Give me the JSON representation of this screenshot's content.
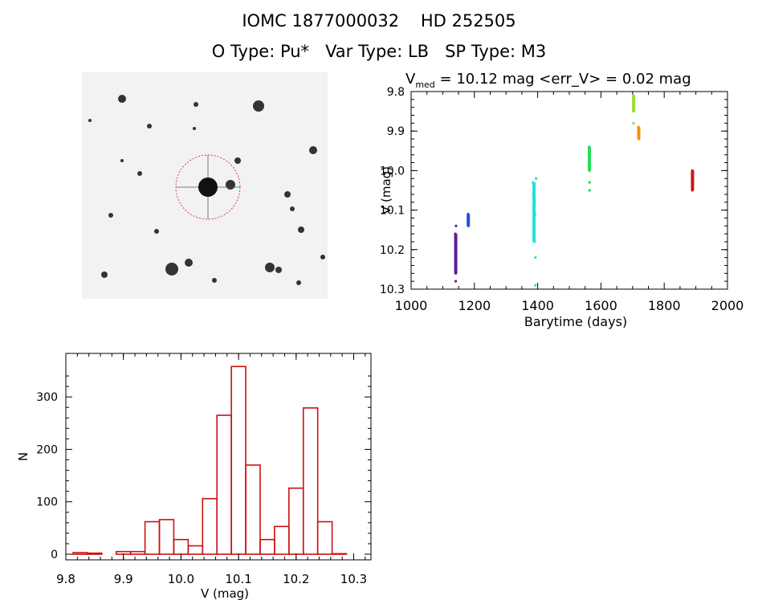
{
  "header": {
    "line1": "IOMC 1877000032    HD 252505",
    "line2": "O Type: Pu*   Var Type: LB   SP Type: M3"
  },
  "colors": {
    "histogram": "#cc1111",
    "aperture": "#dd1111",
    "axes": "#000000"
  },
  "chart_data": [
    {
      "type": "scatter",
      "title": "V_med = 10.12 mag <err_V> = 0.02 mag",
      "title_parts": {
        "main": "V",
        "sub": "med",
        "rest": " = 10.12 mag <err_V> = 0.02 mag"
      },
      "xlabel": "Barytime (days)",
      "ylabel": "V (mag)",
      "xlim": [
        1000,
        2000
      ],
      "ylim": [
        10.3,
        9.8
      ],
      "y_inverted": true,
      "xticks": [
        1000,
        1200,
        1400,
        1600,
        1800,
        2000
      ],
      "xtick_labels": [
        "1000",
        "1200",
        "1400",
        "1600",
        "1800",
        "2000"
      ],
      "yticks": [
        9.8,
        9.9,
        10.0,
        10.1,
        10.2,
        10.3
      ],
      "ytick_labels": [
        "9.8",
        "9.9",
        "10.0",
        "10.1",
        "10.2",
        "10.3"
      ],
      "series": [
        {
          "color": "#5b1c9c",
          "x": [
            1140,
            1141,
            1142,
            1140,
            1142,
            1141
          ],
          "y": [
            10.16,
            10.18,
            10.2,
            10.22,
            10.24,
            10.26
          ],
          "extra": [
            [
              1142,
              10.14
            ],
            [
              1141,
              10.28
            ]
          ]
        },
        {
          "color": "#1f4fd6",
          "x": [
            1180,
            1181,
            1181
          ],
          "y": [
            10.11,
            10.12,
            10.14
          ]
        },
        {
          "color": "#22e0e0",
          "x": [
            1385,
            1386,
            1387,
            1388,
            1389,
            1390,
            1391,
            1392
          ],
          "y": [
            10.03,
            10.06,
            10.09,
            10.12,
            10.15,
            10.18,
            10.08,
            10.11
          ],
          "extra": [
            [
              1395,
              10.02
            ],
            [
              1393,
              10.22
            ],
            [
              1393,
              10.29
            ]
          ]
        },
        {
          "color": "#22dd55",
          "x": [
            1563,
            1564,
            1563,
            1564
          ],
          "y": [
            9.94,
            9.96,
            9.98,
            10.0
          ],
          "extra": [
            [
              1564,
              10.03
            ],
            [
              1564,
              10.05
            ]
          ]
        },
        {
          "color": "#99dd33",
          "x": [
            1703,
            1704,
            1703
          ],
          "y": [
            9.81,
            9.83,
            9.85
          ],
          "extra": [
            [
              1703,
              9.88
            ]
          ]
        },
        {
          "color": "#ff8c00",
          "x": [
            1719,
            1720,
            1719,
            1720
          ],
          "y": [
            9.89,
            9.9,
            9.91,
            9.92
          ]
        },
        {
          "color": "#c41818",
          "x": [
            1889,
            1890,
            1889,
            1890,
            1889
          ],
          "y": [
            10.0,
            10.01,
            10.02,
            10.03,
            10.05
          ]
        }
      ]
    },
    {
      "type": "bar",
      "subtype": "histogram",
      "xlabel": "V (mag)",
      "ylabel": "N",
      "xlim": [
        9.8,
        10.33
      ],
      "ylim": [
        0,
        360
      ],
      "bin_width": 0.025,
      "bin_left_edges": [
        9.8125,
        9.8375,
        9.8625,
        9.8875,
        9.9125,
        9.9375,
        9.9625,
        9.9875,
        10.0125,
        10.0375,
        10.0625,
        10.0875,
        10.1125,
        10.1375,
        10.1625,
        10.1875,
        10.2125,
        10.2375,
        10.2625,
        10.2875
      ],
      "values": [
        3,
        2,
        0,
        5,
        5,
        62,
        66,
        28,
        16,
        106,
        265,
        358,
        170,
        28,
        53,
        126,
        279,
        62,
        1,
        0
      ],
      "xticks": [
        9.8,
        9.9,
        10.0,
        10.1,
        10.2,
        10.3
      ],
      "xtick_labels": [
        "9.8",
        "9.9",
        "10.0",
        "10.1",
        "10.2",
        "10.3"
      ],
      "yticks": [
        0,
        100,
        200,
        300
      ],
      "ytick_labels": [
        "0",
        "100",
        "200",
        "300"
      ]
    }
  ]
}
